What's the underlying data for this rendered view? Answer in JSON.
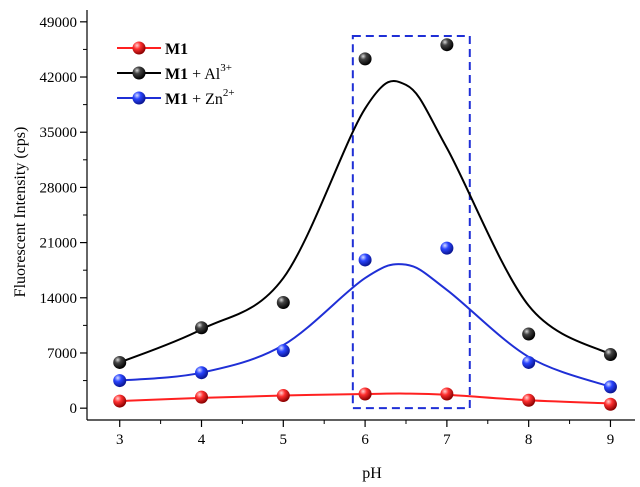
{
  "chart_data": {
    "type": "scatter",
    "xlabel": "pH",
    "ylabel": "Fluorescent Intensity (cps)",
    "xlim": [
      2.6,
      9.3
    ],
    "ylim": [
      -1500,
      50500
    ],
    "x_ticks": [
      3,
      4,
      5,
      6,
      7,
      8,
      9
    ],
    "y_ticks": [
      0,
      7000,
      14000,
      21000,
      28000,
      35000,
      42000,
      49000
    ],
    "grid": false,
    "legend_position": "top-left",
    "highlight_box": {
      "x_range": [
        5.85,
        7.28
      ],
      "y_range": [
        0,
        47200
      ],
      "color": "#1f2fd6",
      "style": "dashed"
    },
    "series": [
      {
        "key": "m1",
        "label_bold": "M1",
        "label_rest": "",
        "label_sup": "",
        "color": "#ff2020",
        "x": [
          3,
          4,
          5,
          6,
          7,
          8,
          9
        ],
        "y": [
          900,
          1400,
          1600,
          1800,
          1800,
          1000,
          500
        ],
        "fit_y": [
          900,
          1300,
          1600,
          1800,
          1850,
          1700,
          1000,
          600
        ]
      },
      {
        "key": "m1-al",
        "label_bold": "M1",
        "label_rest": " + Al",
        "label_sup": "3+",
        "color": "#000000",
        "x": [
          3,
          4,
          5,
          6,
          7,
          8,
          9
        ],
        "y": [
          5800,
          10200,
          13400,
          44300,
          46100,
          9400,
          6800
        ],
        "fit_y": [
          5800,
          10000,
          16500,
          38000,
          41000,
          33000,
          13000,
          6800
        ]
      },
      {
        "key": "m1-zn",
        "label_bold": "M1",
        "label_rest": " + Zn",
        "label_sup": "2+",
        "color": "#1f2fd6",
        "x": [
          3,
          4,
          5,
          6,
          7,
          8,
          9
        ],
        "y": [
          3500,
          4500,
          7300,
          18800,
          20300,
          5800,
          2700
        ],
        "fit_y": [
          3500,
          4500,
          8000,
          16500,
          18200,
          15000,
          6500,
          2700
        ]
      }
    ]
  }
}
